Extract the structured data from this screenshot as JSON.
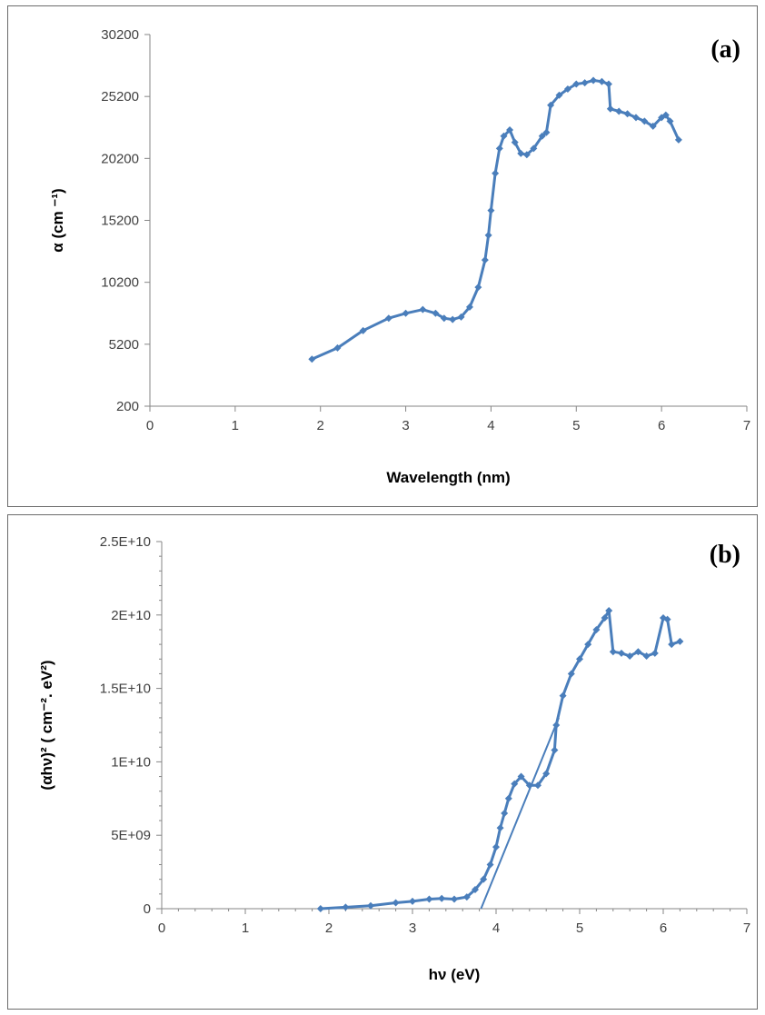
{
  "chart_data": [
    {
      "type": "scatter",
      "panel_label": "(a)",
      "xlabel": "Wavelength (nm)",
      "ylabel": "α (cm ⁻¹)",
      "xlim": [
        0,
        7
      ],
      "ylim": [
        200,
        30200
      ],
      "x_ticks": [
        0,
        1,
        2,
        3,
        4,
        5,
        6,
        7
      ],
      "y_ticks": [
        200,
        5200,
        10200,
        15200,
        20200,
        25200,
        30200
      ],
      "grid": false,
      "series_color": "#4a7ebb",
      "series": [
        {
          "x": [
            1.9,
            2.2,
            2.5,
            2.8,
            3.0,
            3.2,
            3.35,
            3.45,
            3.55,
            3.65,
            3.75,
            3.85,
            3.93,
            3.97,
            4.0,
            4.05,
            4.1,
            4.15,
            4.22,
            4.28,
            4.35,
            4.42,
            4.5,
            4.6,
            4.65,
            4.7,
            4.8,
            4.9,
            5.0,
            5.1,
            5.2,
            5.3,
            5.38,
            5.4,
            5.5,
            5.6,
            5.7,
            5.8,
            5.9,
            6.0,
            6.05,
            6.1,
            6.2
          ],
          "y": [
            4000,
            4900,
            6300,
            7300,
            7700,
            8000,
            7700,
            7300,
            7200,
            7400,
            8200,
            9800,
            12000,
            14000,
            16000,
            19000,
            21000,
            22000,
            22500,
            21500,
            20600,
            20500,
            21000,
            22000,
            22300,
            24500,
            25300,
            25800,
            26200,
            26300,
            26500,
            26400,
            26200,
            24200,
            24000,
            23800,
            23500,
            23200,
            22800,
            23500,
            23700,
            23200,
            21700
          ]
        }
      ]
    },
    {
      "type": "scatter",
      "panel_label": "(b)",
      "xlabel": "hν (eV)",
      "ylabel": "(αhν)² ( cm⁻². eV²)",
      "xlim": [
        0,
        7
      ],
      "ylim": [
        0,
        25000000000
      ],
      "x_ticks": [
        0,
        1,
        2,
        3,
        4,
        5,
        6,
        7
      ],
      "y_ticks": [
        0,
        5000000000,
        10000000000,
        15000000000,
        20000000000,
        25000000000
      ],
      "y_tick_labels": [
        "0",
        "5E+09",
        "1E+10",
        "1.5E+10",
        "2E+10",
        "2.5E+10"
      ],
      "grid": false,
      "series_color": "#4a7ebb",
      "series": [
        {
          "x": [
            1.9,
            2.2,
            2.5,
            2.8,
            3.0,
            3.2,
            3.35,
            3.5,
            3.65,
            3.75,
            3.85,
            3.93,
            4.0,
            4.05,
            4.1,
            4.15,
            4.22,
            4.3,
            4.4,
            4.5,
            4.6,
            4.7,
            4.72,
            4.8,
            4.9,
            5.0,
            5.1,
            5.2,
            5.3,
            5.35,
            5.4,
            5.5,
            5.6,
            5.7,
            5.8,
            5.9,
            6.0,
            6.05,
            6.1,
            6.2
          ],
          "y": [
            0,
            100000000,
            200000000,
            400000000,
            500000000,
            650000000,
            700000000,
            650000000,
            800000000,
            1300000000,
            2000000000,
            3000000000,
            4200000000,
            5500000000,
            6500000000,
            7500000000,
            8500000000,
            9000000000,
            8400000000,
            8400000000,
            9200000000,
            10800000000,
            12500000000,
            14500000000,
            16000000000,
            17000000000,
            18000000000,
            19000000000,
            19800000000,
            20300000000,
            17500000000,
            17400000000,
            17200000000,
            17500000000,
            17200000000,
            17400000000,
            19800000000,
            19700000000,
            18000000000,
            18200000000
          ]
        }
      ],
      "fit_line": {
        "x": [
          3.82,
          4.75
        ],
        "y": [
          0,
          13000000000
        ]
      }
    }
  ]
}
